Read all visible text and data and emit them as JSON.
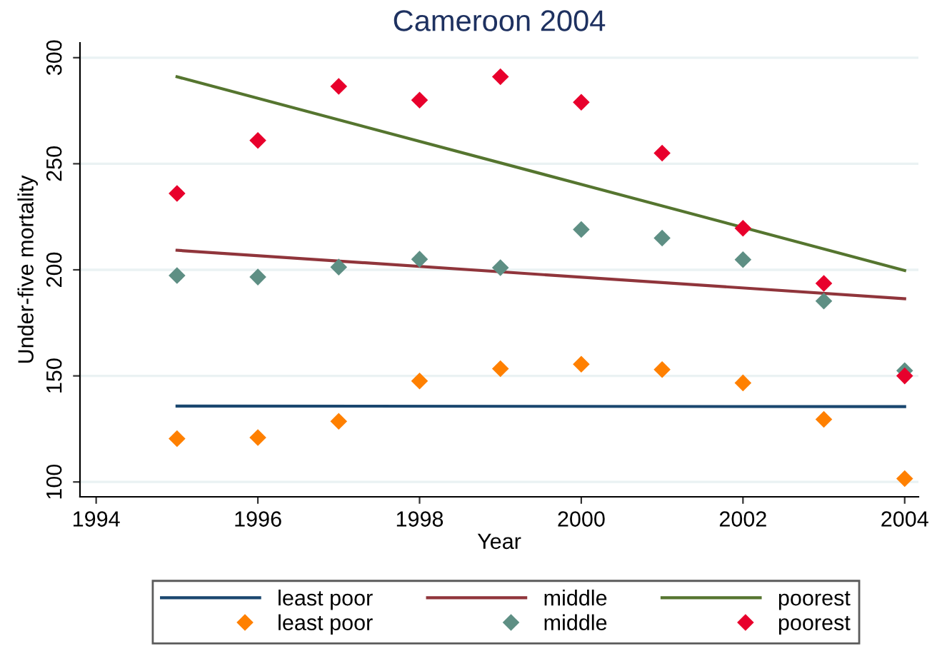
{
  "chart_data": {
    "type": "scatter",
    "title": "Cameroon 2004",
    "xlabel": "Year",
    "ylabel": "Under-five mortality",
    "xlim": [
      1993.8,
      2004.17
    ],
    "xticks": [
      1994,
      1996,
      1998,
      2000,
      2002,
      2004
    ],
    "ylim": [
      93,
      307
    ],
    "yticks": [
      100,
      150,
      200,
      250,
      300
    ],
    "grid": "y",
    "legend": "bottom",
    "series": [
      {
        "name": "least poor",
        "type": "line",
        "marker": "none",
        "color": "#1a476f",
        "x": [
          1995,
          2004
        ],
        "values": [
          135.8,
          135.5
        ]
      },
      {
        "name": "middle",
        "type": "line",
        "marker": "none",
        "color": "#90353b",
        "x": [
          1995,
          2004
        ],
        "values": [
          209.2,
          186.4
        ]
      },
      {
        "name": "poorest",
        "type": "line",
        "marker": "none",
        "color": "#55752f",
        "x": [
          1995,
          2004
        ],
        "values": [
          291,
          199.7
        ]
      },
      {
        "name": "least poor",
        "marker": "diamond",
        "color": "#ff8000",
        "x": [
          1995,
          1996,
          1997,
          1998,
          1999,
          2000,
          2001,
          2002,
          2003,
          2004
        ],
        "values": [
          120.4,
          120.9,
          128.6,
          147.6,
          153.4,
          155.5,
          153,
          146.7,
          129.5,
          101.6
        ]
      },
      {
        "name": "middle",
        "marker": "diamond",
        "color": "#5e8f84",
        "x": [
          1995,
          1996,
          1997,
          1998,
          1999,
          2000,
          2001,
          2002,
          2003,
          2004
        ],
        "values": [
          197.3,
          196.6,
          201.3,
          205,
          201,
          219,
          215,
          204.8,
          185.3,
          152.5
        ]
      },
      {
        "name": "poorest",
        "marker": "diamond",
        "color": "#e8002c",
        "x": [
          1995,
          1996,
          1997,
          1998,
          1999,
          2000,
          2001,
          2002,
          2003,
          2004
        ],
        "values": [
          236,
          261,
          286.5,
          280,
          291,
          279,
          255,
          219.6,
          193.6,
          150
        ]
      }
    ]
  }
}
